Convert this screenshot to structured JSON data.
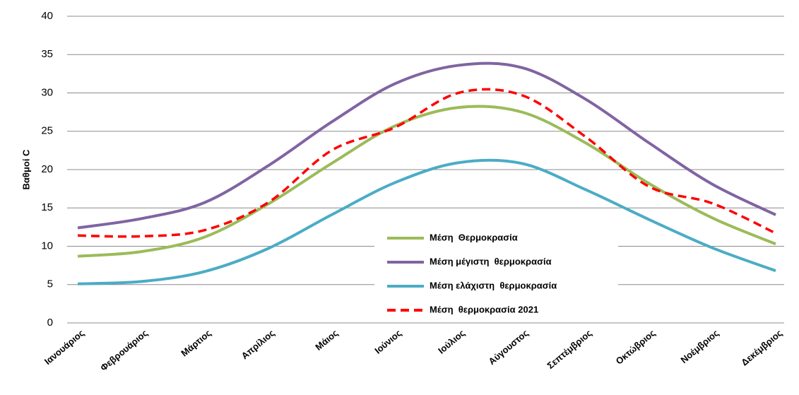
{
  "chart_data": {
    "type": "line",
    "y_label": "Βαθμοί C",
    "categories": [
      "Ιανουάριος",
      "Φεβρουάριος",
      "Μάρτιος",
      "Απρίλιος",
      "Μάιος",
      "Ιούνιος",
      "Ιούλιος",
      "Αύγουστος",
      "Σεπτέμβριος",
      "Οκτώβριος",
      "Νοέμβριος",
      "Δεκέμβριος"
    ],
    "series": [
      {
        "name": "Μέση  Θερμοκρασία",
        "color": "#9bbb59",
        "dashed": false,
        "values": [
          8.7,
          9.3,
          11.2,
          15.5,
          20.8,
          25.7,
          28.1,
          27.5,
          23.5,
          18.2,
          13.7,
          10.3
        ]
      },
      {
        "name": "Μέση μέγιστη  θερμοκρασία",
        "color": "#8064a2",
        "dashed": false,
        "values": [
          12.4,
          13.6,
          15.7,
          20.5,
          26.2,
          31.2,
          33.6,
          33.3,
          29.2,
          23.5,
          18.1,
          14.1
        ]
      },
      {
        "name": "Μέση ελάχιστη  θερμοκρασία",
        "color": "#4bacc6",
        "dashed": false,
        "values": [
          5.1,
          5.4,
          6.7,
          9.7,
          14.1,
          18.3,
          20.9,
          20.8,
          17.4,
          13.5,
          9.8,
          6.8
        ]
      },
      {
        "name": "Μέση  θερμοκρασία 2021",
        "color": "#ff0000",
        "dashed": true,
        "values": [
          11.4,
          11.3,
          12.1,
          15.7,
          22.5,
          25.5,
          30.0,
          29.7,
          24.3,
          17.8,
          15.6,
          11.7
        ]
      }
    ],
    "ylim": [
      0,
      40
    ],
    "yticks": [
      0,
      5,
      10,
      15,
      20,
      25,
      30,
      35,
      40
    ],
    "grid": true,
    "legend": "center"
  }
}
